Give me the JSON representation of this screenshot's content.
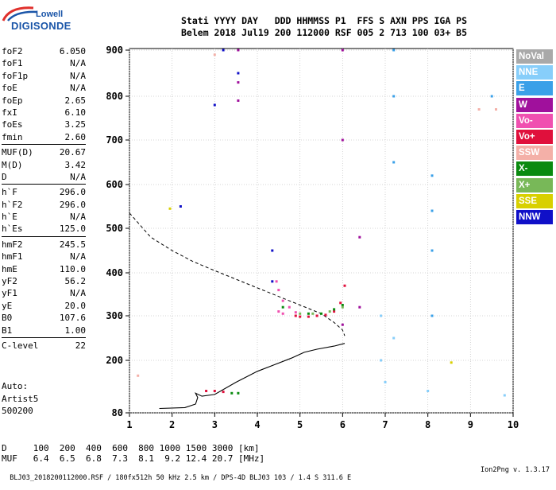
{
  "logo": {
    "line1": "Lowell",
    "line2": "DIGISONDE"
  },
  "header": {
    "labels": "Stati YYYY DAY   DDD HHMMSS P1  FFS S AXN PPS IGA PS",
    "values": "Belem 2018 Jul19 200 112000 RSF 005 2 713 100 03+ B5"
  },
  "params": [
    {
      "k": "foF2",
      "v": "6.050"
    },
    {
      "k": "foF1",
      "v": "N/A"
    },
    {
      "k": "foF1p",
      "v": "N/A"
    },
    {
      "k": "foE",
      "v": "N/A"
    },
    {
      "k": "foEp",
      "v": "2.65"
    },
    {
      "k": "fxI",
      "v": "6.10"
    },
    {
      "k": "foEs",
      "v": "3.25"
    },
    {
      "k": "fmin",
      "v": "2.60"
    },
    {
      "k": "MUF(D)",
      "v": "20.67"
    },
    {
      "k": "M(D)",
      "v": "3.42"
    },
    {
      "k": "D",
      "v": "N/A"
    },
    {
      "k": "h`F",
      "v": "296.0"
    },
    {
      "k": "h`F2",
      "v": "296.0"
    },
    {
      "k": "h`E",
      "v": "N/A"
    },
    {
      "k": "h`Es",
      "v": "125.0"
    },
    {
      "k": "hmF2",
      "v": "245.5"
    },
    {
      "k": "hmF1",
      "v": "N/A"
    },
    {
      "k": "hmE",
      "v": "110.0"
    },
    {
      "k": "yF2",
      "v": "56.2"
    },
    {
      "k": "yF1",
      "v": "N/A"
    },
    {
      "k": "yE",
      "v": "20.0"
    },
    {
      "k": "B0",
      "v": "107.6"
    },
    {
      "k": "B1",
      "v": "1.00"
    },
    {
      "k": "C-level",
      "v": "22"
    }
  ],
  "auto": {
    "line1": "Auto:",
    "line2": "Artist5",
    "line3": "500200"
  },
  "legend": [
    {
      "label": "NoVal",
      "color": "#a9a9a9"
    },
    {
      "label": "NNE",
      "color": "#87cefa"
    },
    {
      "label": "E",
      "color": "#3aa0e8"
    },
    {
      "label": "W",
      "color": "#a0109c"
    },
    {
      "label": "Vo-",
      "color": "#f050b0"
    },
    {
      "label": "Vo+",
      "color": "#e0103c"
    },
    {
      "label": "SSW",
      "color": "#f4b0a8"
    },
    {
      "label": "X-",
      "color": "#0a8a10"
    },
    {
      "label": "X+",
      "color": "#78b858"
    },
    {
      "label": "SSE",
      "color": "#d8d000"
    },
    {
      "label": "NNW",
      "color": "#1010c8"
    }
  ],
  "dmuf": {
    "d_line": "D     100  200  400  600  800 1000 1500 3000 [km]",
    "muf_line": "MUF   6.4  6.5  6.8  7.3  8.1  9.2 12.4 20.7 [MHz]"
  },
  "footer": {
    "left": "BLJ03_2018200112000.RSF / 180fx512h 50 kHz 2.5 km / DPS-4D BLJ03 103 / 1.4 S 311.6 E",
    "right": "Ion2Png v. 1.3.17"
  },
  "chart_data": {
    "type": "scatter",
    "xlim": [
      1,
      10
    ],
    "ylim": [
      80,
      900
    ],
    "x_ticks": [
      1,
      2,
      3,
      4,
      5,
      6,
      7,
      8,
      9,
      10
    ],
    "y_ticks": [
      80,
      200,
      300,
      400,
      500,
      600,
      700,
      800,
      900
    ],
    "grid": true,
    "legend_position": "right",
    "profile_solid": [
      [
        1.7,
        90
      ],
      [
        2.3,
        92
      ],
      [
        2.55,
        100
      ],
      [
        2.6,
        115
      ],
      [
        2.55,
        125
      ],
      [
        2.7,
        118
      ],
      [
        3.0,
        122
      ],
      [
        3.5,
        150
      ],
      [
        4.0,
        175
      ],
      [
        4.4,
        190
      ],
      [
        4.8,
        205
      ],
      [
        5.1,
        218
      ],
      [
        5.4,
        225
      ],
      [
        5.8,
        232
      ],
      [
        6.05,
        238
      ]
    ],
    "profile_dashed": [
      [
        1.0,
        535
      ],
      [
        1.5,
        480
      ],
      [
        2.0,
        450
      ],
      [
        2.5,
        425
      ],
      [
        3.0,
        405
      ],
      [
        3.5,
        385
      ],
      [
        4.0,
        365
      ],
      [
        4.5,
        345
      ],
      [
        5.0,
        325
      ],
      [
        5.5,
        305
      ],
      [
        5.8,
        285
      ],
      [
        6.0,
        268
      ],
      [
        6.05,
        255
      ]
    ],
    "echo_traces": [
      {
        "name": "Vo+",
        "points": [
          [
            4.9,
            300
          ],
          [
            5.0,
            298
          ],
          [
            5.2,
            298
          ],
          [
            5.4,
            300
          ],
          [
            5.6,
            302
          ],
          [
            5.8,
            310
          ],
          [
            5.95,
            330
          ],
          [
            6.05,
            370
          ],
          [
            2.8,
            130
          ],
          [
            3.0,
            130
          ],
          [
            3.2,
            128
          ]
        ]
      },
      {
        "name": "Vo-",
        "points": [
          [
            4.45,
            380
          ],
          [
            4.5,
            360
          ],
          [
            4.6,
            335
          ],
          [
            4.75,
            320
          ],
          [
            4.9,
            308
          ],
          [
            4.5,
            310
          ],
          [
            4.6,
            305
          ]
        ]
      },
      {
        "name": "X-",
        "points": [
          [
            5.2,
            305
          ],
          [
            5.5,
            305
          ],
          [
            5.8,
            315
          ],
          [
            6.0,
            325
          ],
          [
            4.6,
            320
          ],
          [
            3.4,
            125
          ],
          [
            3.55,
            125
          ]
        ]
      },
      {
        "name": "X+",
        "points": [
          [
            5.0,
            305
          ],
          [
            5.3,
            305
          ],
          [
            5.7,
            310
          ],
          [
            6.0,
            320
          ]
        ]
      },
      {
        "name": "W",
        "points": [
          [
            3.55,
            900
          ],
          [
            3.55,
            830
          ],
          [
            3.55,
            790
          ],
          [
            6.0,
            900
          ],
          [
            6.0,
            700
          ],
          [
            6.4,
            480
          ],
          [
            6.4,
            320
          ],
          [
            6.0,
            280
          ]
        ]
      },
      {
        "name": "E",
        "points": [
          [
            7.2,
            900
          ],
          [
            7.2,
            800
          ],
          [
            7.2,
            650
          ],
          [
            8.1,
            620
          ],
          [
            8.1,
            540
          ],
          [
            8.1,
            450
          ],
          [
            8.1,
            300
          ],
          [
            9.5,
            800
          ]
        ]
      },
      {
        "name": "NNE",
        "points": [
          [
            6.9,
            300
          ],
          [
            6.9,
            200
          ],
          [
            7.0,
            150
          ],
          [
            7.2,
            250
          ],
          [
            8.0,
            130
          ],
          [
            9.8,
            120
          ]
        ]
      },
      {
        "name": "NNW",
        "points": [
          [
            3.2,
            900
          ],
          [
            3.55,
            850
          ],
          [
            4.35,
            450
          ],
          [
            4.35,
            380
          ],
          [
            3.0,
            780
          ],
          [
            2.2,
            550
          ]
        ]
      },
      {
        "name": "SSW",
        "points": [
          [
            9.2,
            770
          ],
          [
            9.6,
            770
          ],
          [
            1.2,
            165
          ],
          [
            3.0,
            890
          ]
        ]
      },
      {
        "name": "SSE",
        "points": [
          [
            8.55,
            195
          ],
          [
            1.95,
            545
          ]
        ]
      }
    ]
  }
}
